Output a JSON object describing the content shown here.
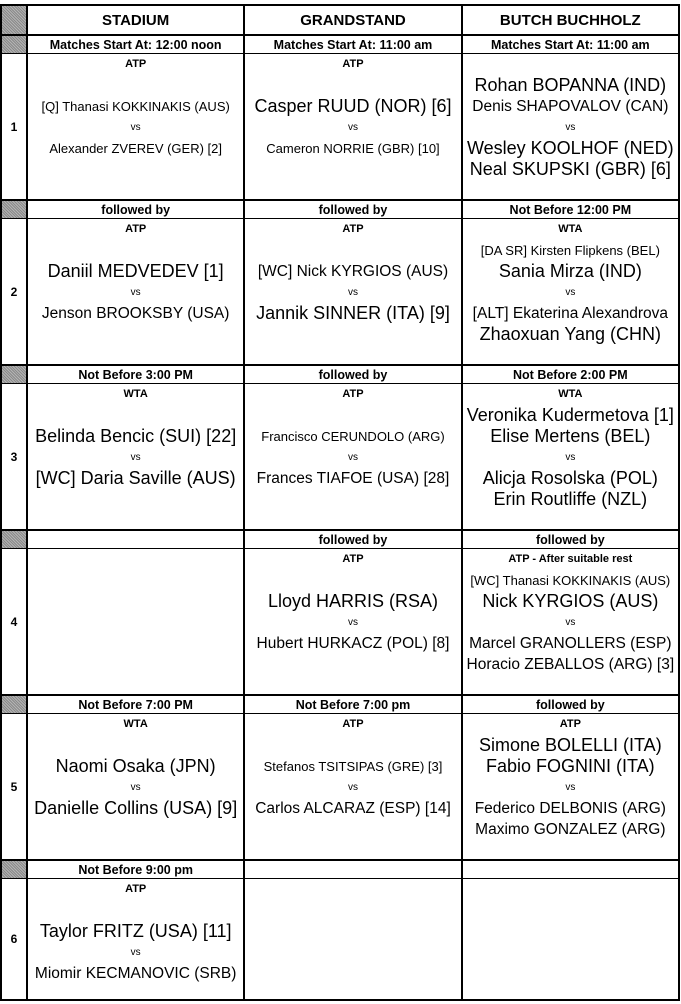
{
  "courts": [
    "STADIUM",
    "GRANDSTAND",
    "BUTCH BUCHHOLZ"
  ],
  "rows": [
    {
      "number": "1",
      "cells": [
        {
          "header": "Matches Start At: 12:00 noon",
          "tour": "ATP",
          "team1": [
            "[Q] Thanasi KOKKINAKIS (AUS)"
          ],
          "team2": [
            "Alexander ZVEREV (GER) [2]"
          ],
          "vs": "vs"
        },
        {
          "header": "Matches Start At: 11:00 am",
          "tour": "ATP",
          "team1": [
            "Casper RUUD (NOR) [6]"
          ],
          "team2": [
            "Cameron NORRIE (GBR) [10]"
          ],
          "vs": "vs"
        },
        {
          "header": "Matches Start At: 11:00 am",
          "tour": "",
          "team1": [
            "Rohan BOPANNA (IND)",
            "Denis SHAPOVALOV (CAN)"
          ],
          "team2": [
            "Wesley KOOLHOF (NED)",
            "Neal SKUPSKI (GBR) [6]"
          ],
          "vs": "vs"
        }
      ]
    },
    {
      "number": "2",
      "cells": [
        {
          "header": "followed by",
          "tour": "ATP",
          "team1": [
            "Daniil MEDVEDEV [1]"
          ],
          "team2": [
            "Jenson BROOKSBY (USA)"
          ],
          "vs": "vs"
        },
        {
          "header": "followed by",
          "tour": "ATP",
          "team1": [
            "[WC] Nick KYRGIOS (AUS)"
          ],
          "team2": [
            "Jannik SINNER (ITA) [9]"
          ],
          "vs": "vs"
        },
        {
          "header": "Not Before 12:00 PM",
          "tour": "WTA",
          "team1": [
            "[DA SR] Kirsten Flipkens (BEL)",
            "Sania Mirza (IND)"
          ],
          "team2": [
            "[ALT] Ekaterina Alexandrova",
            "Zhaoxuan Yang (CHN)"
          ],
          "vs": "vs"
        }
      ]
    },
    {
      "number": "3",
      "cells": [
        {
          "header": "Not Before 3:00 PM",
          "tour": "WTA",
          "team1": [
            "Belinda Bencic (SUI) [22]"
          ],
          "team2": [
            "[WC] Daria Saville (AUS)"
          ],
          "vs": "vs"
        },
        {
          "header": "followed by",
          "tour": "ATP",
          "team1": [
            "Francisco CERUNDOLO (ARG)"
          ],
          "team2": [
            "Frances TIAFOE (USA) [28]"
          ],
          "vs": "vs"
        },
        {
          "header": "Not Before 2:00 PM",
          "tour": "WTA",
          "team1": [
            "Veronika Kudermetova [1]",
            "Elise Mertens (BEL)"
          ],
          "team2": [
            "Alicja Rosolska (POL)",
            "Erin Routliffe (NZL)"
          ],
          "vs": "vs"
        }
      ]
    },
    {
      "number": "4",
      "cells": [
        {
          "header": "",
          "tour": "",
          "team1": [],
          "team2": [],
          "vs": ""
        },
        {
          "header": "followed by",
          "tour": "ATP",
          "team1": [
            "Lloyd HARRIS (RSA)"
          ],
          "team2": [
            "Hubert HURKACZ (POL) [8]"
          ],
          "vs": "vs"
        },
        {
          "header": "followed by",
          "tour": "ATP - After suitable rest",
          "team1": [
            "[WC] Thanasi KOKKINAKIS (AUS)",
            "Nick KYRGIOS (AUS)"
          ],
          "team2": [
            "Marcel GRANOLLERS (ESP)",
            "Horacio ZEBALLOS (ARG) [3]"
          ],
          "vs": "vs"
        }
      ]
    },
    {
      "number": "5",
      "cells": [
        {
          "header": "Not Before 7:00 PM",
          "tour": "WTA",
          "team1": [
            "Naomi Osaka (JPN)"
          ],
          "team2": [
            "Danielle Collins (USA) [9]"
          ],
          "vs": "vs"
        },
        {
          "header": "Not Before 7:00 pm",
          "tour": "ATP",
          "team1": [
            "Stefanos TSITSIPAS (GRE) [3]"
          ],
          "team2": [
            "Carlos ALCARAZ (ESP) [14]"
          ],
          "vs": "vs"
        },
        {
          "header": "followed by",
          "tour": "ATP",
          "team1": [
            "Simone BOLELLI (ITA)",
            "Fabio FOGNINI (ITA)"
          ],
          "team2": [
            "Federico DELBONIS (ARG)",
            "Maximo GONZALEZ (ARG)"
          ],
          "vs": "vs"
        }
      ]
    },
    {
      "number": "6",
      "cells": [
        {
          "header": "Not Before 9:00 pm",
          "tour": "ATP",
          "team1": [
            "Taylor FRITZ (USA) [11]"
          ],
          "team2": [
            "Miomir KECMANOVIC (SRB)"
          ],
          "vs": "vs"
        },
        {
          "header": "",
          "tour": "",
          "team1": [],
          "team2": [],
          "vs": ""
        },
        {
          "header": "",
          "tour": "",
          "team1": [],
          "team2": [],
          "vs": ""
        }
      ]
    }
  ]
}
